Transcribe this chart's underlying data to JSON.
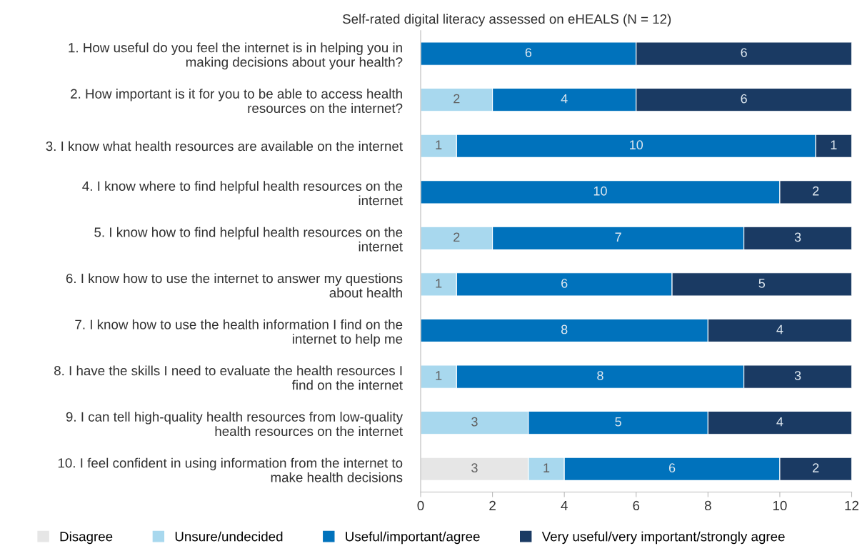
{
  "chart_data": {
    "type": "bar",
    "orientation": "horizontal",
    "stacked": true,
    "title": "Self-rated digital literacy assessed on eHEALS (N = 12)",
    "categories": [
      "1. How useful do you feel the internet is in helping you in\nmaking decisions about your health?",
      "2. How important is it for you to be able to access health\nresources on the internet?",
      "3. I know what health resources are available on the internet",
      "4. I know where to find helpful health resources on the\ninternet",
      "5. I know how to find helpful health resources on the\ninternet",
      "6. I know how to use the internet to answer my questions\nabout health",
      "7. I know how to use the health information I find on the\ninternet to help me",
      "8. I have the skills I need to evaluate the health resources I\nfind on the internet",
      "9. I can tell high-quality health resources from low-quality\nhealth resources on the internet",
      "10. I feel confident in using information from the internet to\nmake health decisions"
    ],
    "series": [
      {
        "name": "Disagree",
        "color": "#e6e6e6",
        "values": [
          null,
          null,
          null,
          null,
          null,
          null,
          null,
          null,
          null,
          3
        ]
      },
      {
        "name": "Unsure/undecided",
        "color": "#a8d8ee",
        "values": [
          null,
          2,
          1,
          null,
          2,
          1,
          null,
          1,
          3,
          1
        ]
      },
      {
        "name": "Useful/important/agree",
        "color": "#0072bc",
        "values": [
          6,
          4,
          10,
          10,
          7,
          6,
          8,
          8,
          5,
          6
        ]
      },
      {
        "name": "Very useful/very important/strongly agree",
        "color": "#1a3a63",
        "values": [
          6,
          6,
          1,
          2,
          3,
          5,
          4,
          3,
          4,
          2
        ]
      }
    ],
    "xlim": [
      0,
      12
    ],
    "xticks": [
      0,
      2,
      4,
      6,
      8,
      10,
      12
    ],
    "data_labels": true,
    "legend": "bottom",
    "grid": false
  }
}
